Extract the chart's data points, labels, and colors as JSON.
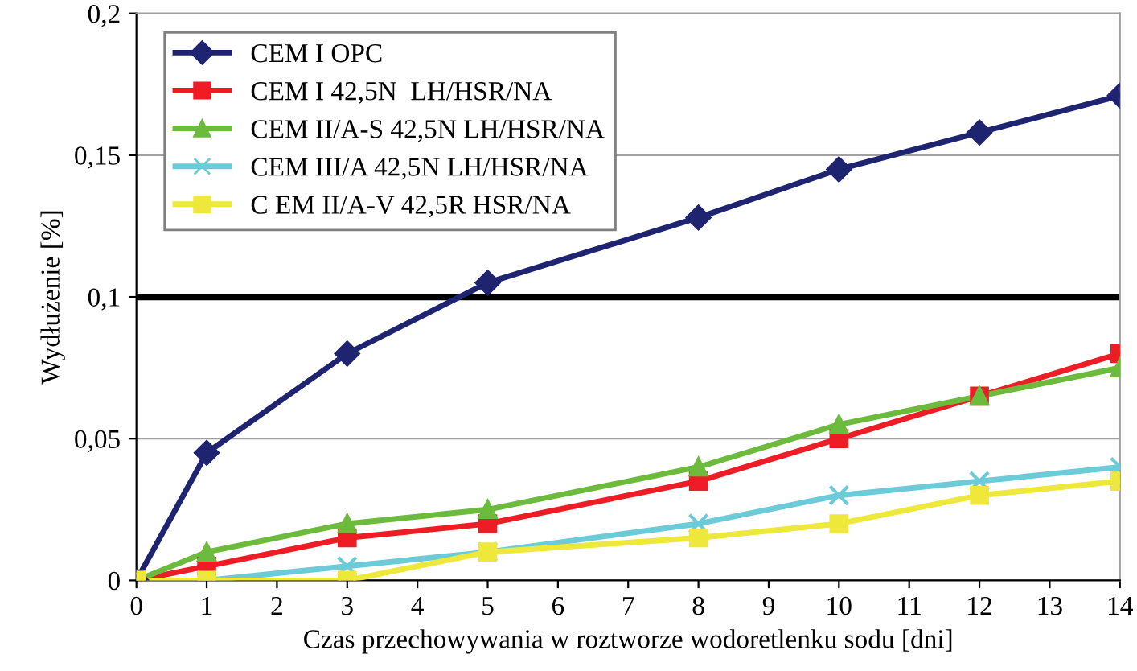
{
  "chart_data": {
    "type": "line",
    "xlabel": "Czas przechowywania w roztworze wodoretlenku sodu [dni]",
    "ylabel": "Wydłużenie [%]",
    "x": [
      0,
      1,
      3,
      5,
      8,
      10,
      12,
      14
    ],
    "series": [
      {
        "name": "CEM I OPC",
        "color": "#1f2470",
        "marker": "diamond",
        "values": [
          0,
          0.045,
          0.08,
          0.105,
          0.128,
          0.145,
          0.158,
          0.171
        ]
      },
      {
        "name": "CEM I 42,5N  LH/HSR/NA",
        "color": "#ee1c25",
        "marker": "square",
        "values": [
          0,
          0.005,
          0.015,
          0.02,
          0.035,
          0.05,
          0.065,
          0.08
        ]
      },
      {
        "name": "CEM II/A-S 42,5N LH/HSR/NA",
        "color": "#6cbb3c",
        "marker": "triangle",
        "values": [
          0,
          0.01,
          0.02,
          0.025,
          0.04,
          0.055,
          0.065,
          0.075
        ]
      },
      {
        "name": "CEM III/A 42,5N LH/HSR/NA",
        "color": "#6ccbd8",
        "marker": "cross",
        "values": [
          0,
          0,
          0.005,
          0.01,
          0.02,
          0.03,
          0.035,
          0.04
        ]
      },
      {
        "name": "C EM II/A-V 42,5R HSR/NA",
        "color": "#eee83a",
        "marker": "square",
        "values": [
          0,
          0,
          0,
          0.01,
          0.015,
          0.02,
          0.03,
          0.035
        ]
      }
    ],
    "xlim": [
      0,
      14
    ],
    "xticks": [
      0,
      1,
      2,
      3,
      4,
      5,
      6,
      7,
      8,
      9,
      10,
      11,
      12,
      13,
      14
    ],
    "ylim": [
      0,
      0.2
    ],
    "yticks": [
      {
        "value": 0,
        "label": "0"
      },
      {
        "value": 0.05,
        "label": "0,05"
      },
      {
        "value": 0.1,
        "label": "0,1"
      },
      {
        "value": 0.15,
        "label": "0,15"
      },
      {
        "value": 0.2,
        "label": "0,2"
      }
    ],
    "ref_lines": [
      {
        "axis": "y",
        "value": 0.1,
        "color": "#000000"
      }
    ],
    "grid": "y",
    "legend": "top left",
    "line_style": "solid"
  }
}
